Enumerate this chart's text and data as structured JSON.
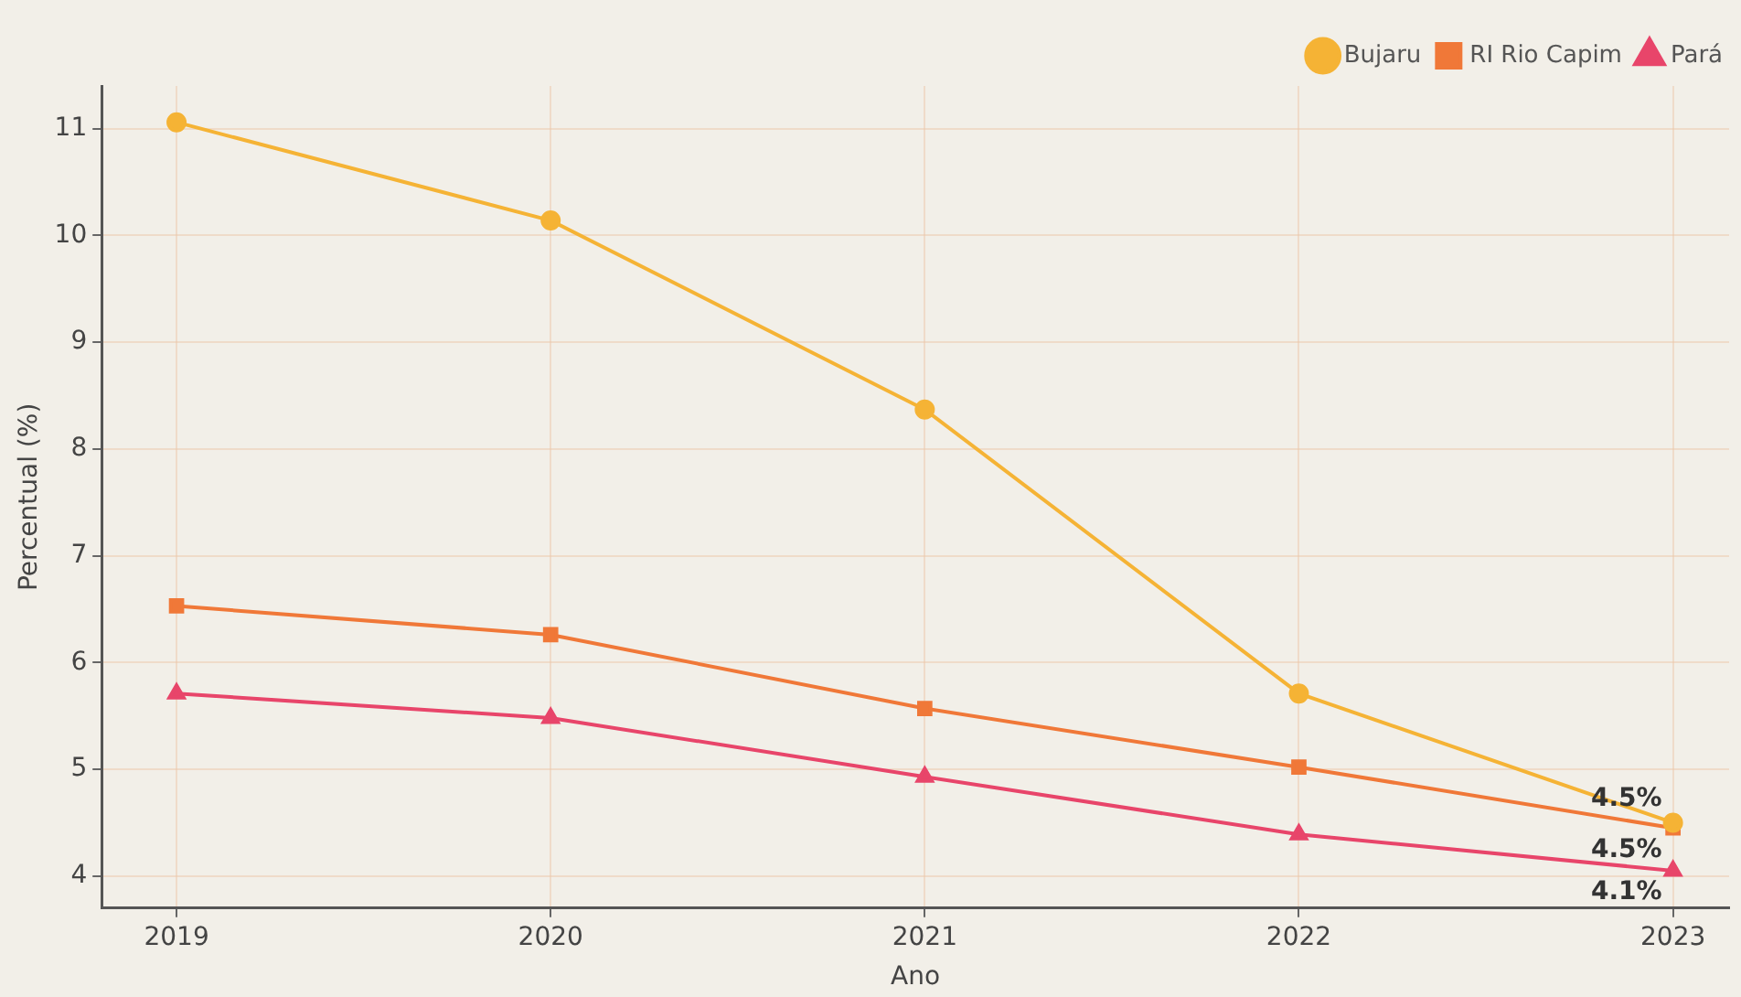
{
  "chart_data": {
    "type": "line",
    "xlabel": "Ano",
    "ylabel": "Percentual (%)",
    "x": [
      2019,
      2020,
      2021,
      2022,
      2023
    ],
    "series": [
      {
        "name": "Bujaru",
        "color": "#f5b335",
        "marker": "circle",
        "values": [
          11.06,
          10.14,
          8.37,
          5.71,
          4.5
        ],
        "value_labels": [
          null,
          null,
          null,
          null,
          "4.5%"
        ]
      },
      {
        "name": "RI Rio Capim",
        "color": "#f07838",
        "marker": "square",
        "values": [
          6.53,
          6.26,
          5.57,
          5.02,
          4.45
        ],
        "value_labels": [
          null,
          null,
          null,
          null,
          "4.5%"
        ]
      },
      {
        "name": "Pará",
        "color": "#e8456a",
        "marker": "triangle",
        "values": [
          5.71,
          5.48,
          4.93,
          4.39,
          4.05
        ],
        "value_labels": [
          null,
          null,
          null,
          null,
          "4.1%"
        ]
      }
    ],
    "xlim": [
      2018.8,
      2023.15
    ],
    "xticks": [
      2019,
      2020,
      2021,
      2022,
      2023
    ],
    "ylim": [
      3.7,
      11.4
    ],
    "yticks": [
      4,
      5,
      6,
      7,
      8,
      9,
      10,
      11
    ],
    "grid": true,
    "legend": "top right",
    "line_style": "solid"
  }
}
